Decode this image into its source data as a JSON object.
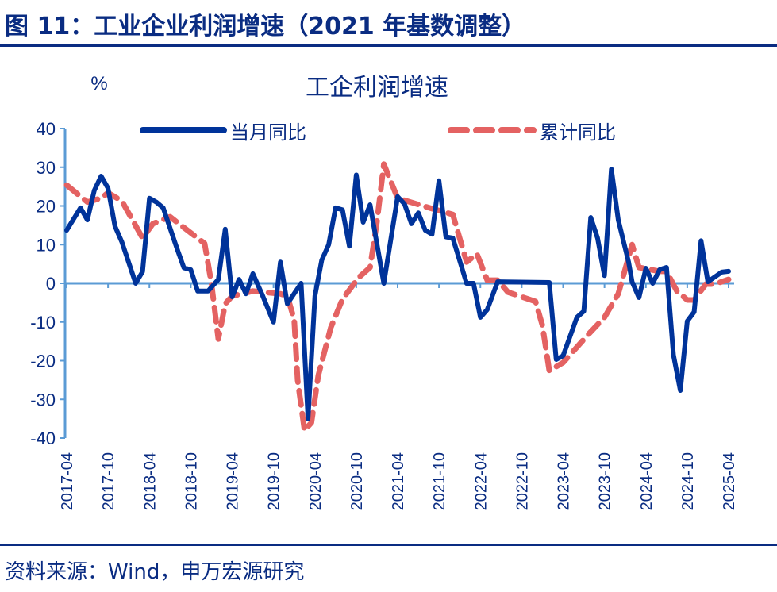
{
  "figure_title": "图 11：工业企业利润增速（2021 年基数调整）",
  "source": "资料来源：Wind，申万宏源研究",
  "colors": {
    "monthly": "#00339a",
    "cumulative": "#e46262",
    "axis": "#5b9bd5",
    "text": "#0a2c82"
  },
  "chart_data": {
    "type": "line",
    "title": "工企利润增速",
    "ylabel": "%",
    "xlabel": "",
    "ylim": [
      -40,
      40
    ],
    "yticks": [
      40,
      30,
      20,
      10,
      0,
      -10,
      -20,
      -30,
      -40
    ],
    "x_unit": "months since 2017-04",
    "xlim": [
      0,
      96
    ],
    "xtick_labels": [
      "2017-04",
      "2017-10",
      "2018-04",
      "2018-10",
      "2019-04",
      "2019-10",
      "2020-04",
      "2020-10",
      "2021-04",
      "2021-10",
      "2022-04",
      "2022-10",
      "2023-04",
      "2023-10",
      "2024-04",
      "2024-10",
      "2025-04"
    ],
    "legend": "top",
    "series": [
      {
        "name": "当月同比",
        "style": "solid",
        "points": [
          [
            0,
            13.7
          ],
          [
            2,
            19.5
          ],
          [
            3,
            16.4
          ],
          [
            4,
            24
          ],
          [
            5,
            27.7
          ],
          [
            6,
            24.6
          ],
          [
            7,
            14.8
          ],
          [
            8,
            10.7
          ],
          [
            10,
            0
          ],
          [
            11,
            3
          ],
          [
            12,
            22
          ],
          [
            13,
            21
          ],
          [
            14,
            19.5
          ],
          [
            16,
            9
          ],
          [
            17,
            4
          ],
          [
            18,
            3.5
          ],
          [
            19,
            -2
          ],
          [
            20.5,
            -2
          ],
          [
            22,
            1
          ],
          [
            23,
            14
          ],
          [
            24,
            -3.5
          ],
          [
            25,
            1
          ],
          [
            26,
            -2.7
          ],
          [
            27,
            2.5
          ],
          [
            28.3,
            -2.7
          ],
          [
            30,
            -10
          ],
          [
            31,
            5.5
          ],
          [
            32,
            -5.3
          ],
          [
            34,
            0
          ],
          [
            35,
            -35
          ],
          [
            36,
            -3.3
          ],
          [
            37,
            6
          ],
          [
            38,
            10
          ],
          [
            39,
            19.5
          ],
          [
            40,
            19
          ],
          [
            41,
            9.6
          ],
          [
            42,
            28
          ],
          [
            43,
            15.8
          ],
          [
            44,
            20.3
          ],
          [
            46,
            0
          ],
          [
            48,
            22.4
          ],
          [
            49,
            20.5
          ],
          [
            50,
            15.4
          ],
          [
            51,
            18.2
          ],
          [
            52,
            13.7
          ],
          [
            53,
            12.7
          ],
          [
            54,
            26.5
          ],
          [
            55,
            12
          ],
          [
            56,
            11.7
          ],
          [
            58,
            0
          ],
          [
            59,
            0
          ],
          [
            60,
            -8.8
          ],
          [
            61,
            -6.8
          ],
          [
            62.5,
            0.4
          ],
          [
            70,
            0.2
          ],
          [
            71,
            -19.7
          ],
          [
            72,
            -18.7
          ],
          [
            74,
            -8.8
          ],
          [
            75,
            -7.2
          ],
          [
            76,
            17
          ],
          [
            77,
            11.7
          ],
          [
            78,
            2
          ],
          [
            79,
            29.5
          ],
          [
            80,
            16.4
          ],
          [
            81.5,
            5.5
          ],
          [
            82,
            0.4
          ],
          [
            83,
            -3.7
          ],
          [
            84,
            3.9
          ],
          [
            85,
            0
          ],
          [
            86,
            3.5
          ],
          [
            87,
            4.1
          ],
          [
            88,
            -18.5
          ],
          [
            89,
            -27.7
          ],
          [
            90,
            -9.8
          ],
          [
            91,
            -7.4
          ],
          [
            92,
            11
          ],
          [
            93,
            0.4
          ],
          [
            95,
            2.9
          ],
          [
            96,
            3.1
          ]
        ]
      },
      {
        "name": "累计同比",
        "style": "dashed",
        "points": [
          [
            0,
            25.4
          ],
          [
            3,
            21
          ],
          [
            5,
            22
          ],
          [
            6,
            23.4
          ],
          [
            8,
            21.3
          ],
          [
            11,
            11.7
          ],
          [
            12.5,
            15.4
          ],
          [
            15,
            17.2
          ],
          [
            17,
            14.4
          ],
          [
            20,
            10.3
          ],
          [
            21,
            0
          ],
          [
            22,
            -14.4
          ],
          [
            23,
            -5.3
          ],
          [
            24,
            -3.3
          ],
          [
            27,
            -2
          ],
          [
            31,
            -2.7
          ],
          [
            32,
            -3.3
          ],
          [
            33,
            -9.4
          ],
          [
            33.5,
            -25
          ],
          [
            34.5,
            -38
          ],
          [
            35.5,
            -36
          ],
          [
            36.5,
            -23.8
          ],
          [
            38.3,
            -11.5
          ],
          [
            40,
            -4.1
          ],
          [
            42.3,
            1.4
          ],
          [
            44,
            4.1
          ],
          [
            45,
            15.8
          ],
          [
            46,
            30.8
          ],
          [
            48,
            22
          ],
          [
            53,
            19.3
          ],
          [
            56,
            17.8
          ],
          [
            58,
            5.5
          ],
          [
            59.5,
            7.6
          ],
          [
            61,
            0.8
          ],
          [
            62.5,
            0.8
          ],
          [
            64,
            -2.3
          ],
          [
            68,
            -4.7
          ],
          [
            69,
            -10.9
          ],
          [
            70,
            -22.6
          ],
          [
            72,
            -20.5
          ],
          [
            75.5,
            -13.5
          ],
          [
            78,
            -8.8
          ],
          [
            80,
            -2.7
          ],
          [
            82,
            10
          ],
          [
            83,
            4.1
          ],
          [
            86,
            3.1
          ],
          [
            87,
            3.1
          ],
          [
            88.5,
            -2
          ],
          [
            90,
            -4.3
          ],
          [
            91,
            -4.3
          ],
          [
            92.7,
            -0.2
          ],
          [
            94,
            -0.2
          ],
          [
            96,
            1
          ]
        ]
      }
    ]
  }
}
